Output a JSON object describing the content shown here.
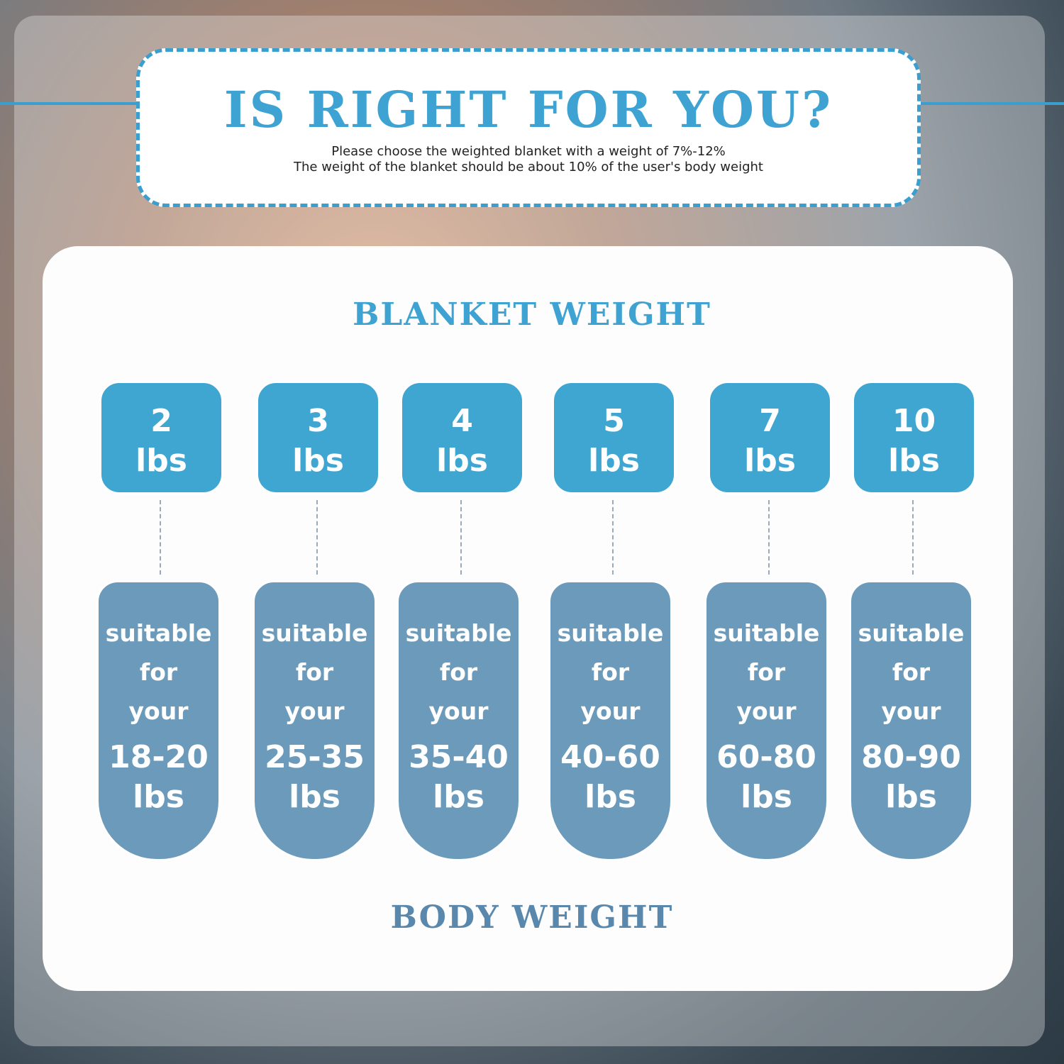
{
  "header": {
    "title": "IS RIGHT FOR YOU?",
    "line1": "Please choose the weighted blanket with a weight of 7%-12%",
    "line2": "The weight of the blanket should be about 10% of the user's body weight"
  },
  "blanket_heading": "BLANKET WEIGHT",
  "body_heading": "BODY WEIGHT",
  "colors": {
    "accent": "#3ea3d2",
    "blanket_box": "#3ea6d1",
    "body_box": "#6b9aba",
    "body_heading": "#5a88ad"
  },
  "items": [
    {
      "blanket": "2",
      "unit": "lbs",
      "l1": "suitable",
      "l2": "for",
      "l3": "your",
      "range": "18-20",
      "range_unit": "lbs"
    },
    {
      "blanket": "3",
      "unit": "lbs",
      "l1": "suitable",
      "l2": "for",
      "l3": "your",
      "range": "25-35",
      "range_unit": "lbs"
    },
    {
      "blanket": "4",
      "unit": "lbs",
      "l1": "suitable",
      "l2": "for",
      "l3": "your",
      "range": "35-40",
      "range_unit": "lbs"
    },
    {
      "blanket": "5",
      "unit": "lbs",
      "l1": "suitable",
      "l2": "for",
      "l3": "your",
      "range": "40-60",
      "range_unit": "lbs"
    },
    {
      "blanket": "7",
      "unit": "lbs",
      "l1": "suitable",
      "l2": "for",
      "l3": "your",
      "range": "60-80",
      "range_unit": "lbs"
    },
    {
      "blanket": "10",
      "unit": "lbs",
      "l1": "suitable",
      "l2": "for",
      "l3": "your",
      "range": "80-90",
      "range_unit": "lbs"
    }
  ]
}
